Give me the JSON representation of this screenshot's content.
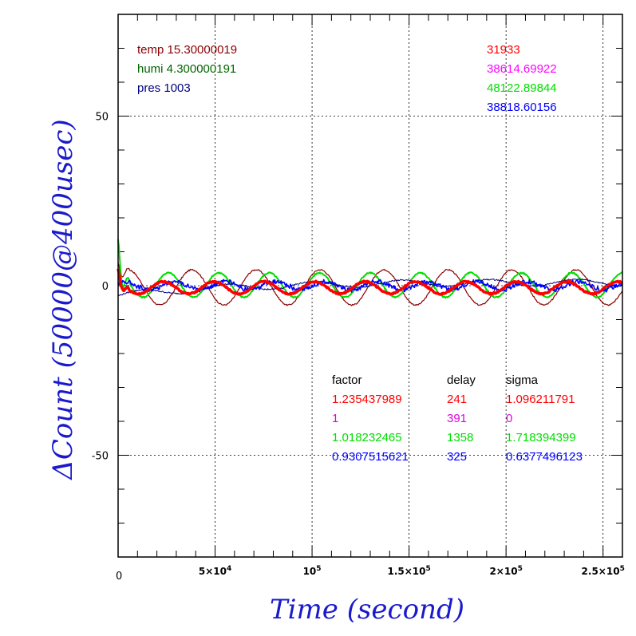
{
  "chart_data": {
    "type": "line",
    "xlabel": "Time (second)",
    "ylabel": "ΔCount (50000@400usec)",
    "xlim": [
      0,
      260000
    ],
    "ylim": [
      -80,
      80
    ],
    "x_major_ticks": [
      50000,
      100000,
      150000,
      200000,
      250000
    ],
    "x_tick_labels": [
      {
        "mant": "5×10",
        "exp": "4"
      },
      {
        "mant": "10",
        "exp": "5"
      },
      {
        "mant": "1.5×10",
        "exp": "5"
      },
      {
        "mant": "2×10",
        "exp": "5"
      },
      {
        "mant": "2.5×10",
        "exp": "5"
      }
    ],
    "x_origin_label": "0",
    "y_major_ticks": [
      -50,
      0,
      50
    ],
    "y_tick_labels": [
      "-50",
      "0",
      "50"
    ],
    "grid": true,
    "series": [
      {
        "color": "#8b0000",
        "kind": "sine",
        "amp": 5.2,
        "period": 33000,
        "phase": 0.6,
        "offset": -0.5,
        "lw": 1.2
      },
      {
        "color": "#00dd00",
        "kind": "sine",
        "amp": 3.6,
        "period": 26000,
        "phase": 1.6,
        "offset": 0.2,
        "lw": 2.0
      },
      {
        "color": "#000080",
        "kind": "drift",
        "amp": 1.0,
        "period": 45000,
        "lw": 1.0
      },
      {
        "color": "#0000ff",
        "kind": "noise",
        "amp": 1.2,
        "period": 26000,
        "phase": 0.8,
        "lw": 1.6
      },
      {
        "color": "#ff0000",
        "kind": "sine",
        "amp": 1.8,
        "period": 26000,
        "phase": 2.2,
        "offset": -0.6,
        "lw": 3.5
      }
    ],
    "env_annotations": [
      {
        "text": "temp 15.30000019",
        "color": "#8b0000"
      },
      {
        "text": "humi 4.300000191",
        "color": "#006400"
      },
      {
        "text": "pres 1003",
        "color": "#000080"
      }
    ],
    "count_annotations": [
      {
        "text": "31933",
        "color": "#ff0000"
      },
      {
        "text": "38614.69922",
        "color": "#ff00ff"
      },
      {
        "text": "48122.89844",
        "color": "#00dd00"
      },
      {
        "text": "38818.60156",
        "color": "#0000ff"
      }
    ],
    "table_headers": [
      "factor",
      "delay",
      "sigma"
    ],
    "table_rows": [
      {
        "factor": "1.235437989",
        "delay": "241",
        "sigma": "1.096211791",
        "color": "#ff0000"
      },
      {
        "factor": "1",
        "delay": "391",
        "sigma": "0",
        "color": "#dd00dd"
      },
      {
        "factor": "1.018232465",
        "delay": "1358",
        "sigma": "1.718394399",
        "color": "#00dd00"
      },
      {
        "factor": "0.9307515621",
        "delay": "325",
        "sigma": "0.6377496123",
        "color": "#0000ff"
      }
    ]
  }
}
